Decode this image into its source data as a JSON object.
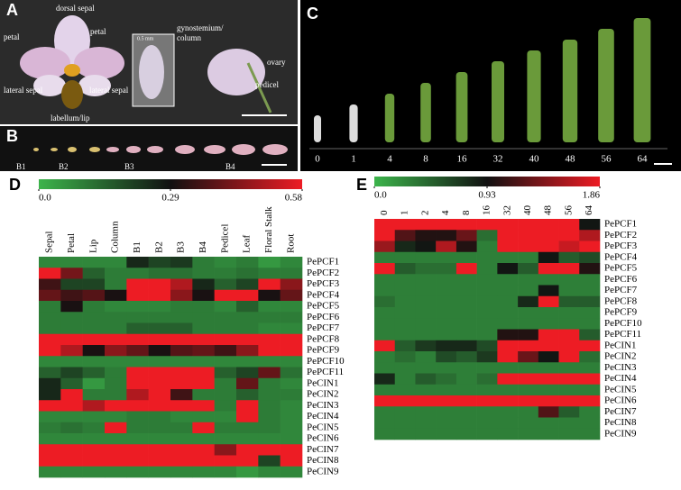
{
  "panel_a": {
    "label": "A",
    "texts": [
      "dorsal sepal",
      "petal",
      "petal",
      "gynostemium/",
      "column",
      "0.5 mm",
      "ovary",
      "lateral sepal",
      "lateral sepal",
      "pedicel",
      "labellum/lip"
    ]
  },
  "panel_b": {
    "label": "B",
    "stages": [
      "B1",
      "B2",
      "B3",
      "B4"
    ]
  },
  "panel_c": {
    "label": "C",
    "stages": [
      "0",
      "1",
      "4",
      "8",
      "16",
      "32",
      "40",
      "48",
      "56",
      "64"
    ]
  },
  "chart_data": [
    {
      "type": "heatmap",
      "label": "D",
      "colors": [
        "#3cb44b",
        "#111111",
        "#ed1c24"
      ],
      "zlim": [
        0,
        0.58
      ],
      "zticks": [
        {
          "value": 0,
          "label": "0.0"
        },
        0.29,
        0.58
      ],
      "x": [
        "Sepal",
        "Petal",
        "Lip",
        "Column",
        "B1",
        "B2",
        "B3",
        "B4",
        "Pedicel",
        "Leaf",
        "Floral Stalk",
        "Root"
      ],
      "y": [
        "PePCF1",
        "PePCF2",
        "PePCF3",
        "PePCF4",
        "PePCF5",
        "PePCF6",
        "PePCF7",
        "PePCF8",
        "PePCF9",
        "PePCF10",
        "PePCF11",
        "PeCIN1",
        "PeCIN2",
        "PeCIN3",
        "PeCIN4",
        "PeCIN5",
        "PeCIN6",
        "PeCIN7",
        "PeCIN8",
        "PeCIN9"
      ],
      "values": [
        [
          0.08,
          0.08,
          0.08,
          0.08,
          0.25,
          0.2,
          0.22,
          0.1,
          0.08,
          0.1,
          0.05,
          0.08
        ],
        [
          0.58,
          0.42,
          0.15,
          0.1,
          0.1,
          0.12,
          0.12,
          0.1,
          0.1,
          0.12,
          0.1,
          0.1
        ],
        [
          0.35,
          0.2,
          0.2,
          0.1,
          0.58,
          0.58,
          0.5,
          0.25,
          0.15,
          0.2,
          0.58,
          0.45
        ],
        [
          0.4,
          0.35,
          0.38,
          0.3,
          0.58,
          0.58,
          0.45,
          0.3,
          0.58,
          0.58,
          0.3,
          0.4
        ],
        [
          0.1,
          0.3,
          0.1,
          0.08,
          0.08,
          0.08,
          0.1,
          0.1,
          0.08,
          0.15,
          0.08,
          0.08
        ],
        [
          0.1,
          0.1,
          0.1,
          0.1,
          0.1,
          0.1,
          0.1,
          0.1,
          0.1,
          0.1,
          0.1,
          0.1
        ],
        [
          0.1,
          0.1,
          0.1,
          0.1,
          0.15,
          0.15,
          0.15,
          0.1,
          0.1,
          0.1,
          0.08,
          0.08
        ],
        [
          0.58,
          0.58,
          0.58,
          0.58,
          0.58,
          0.58,
          0.58,
          0.58,
          0.58,
          0.58,
          0.58,
          0.58
        ],
        [
          0.58,
          0.5,
          0.3,
          0.45,
          0.4,
          0.3,
          0.38,
          0.4,
          0.35,
          0.45,
          0.58,
          0.58
        ],
        [
          0.08,
          0.08,
          0.08,
          0.08,
          0.08,
          0.08,
          0.08,
          0.08,
          0.08,
          0.08,
          0.08,
          0.08
        ],
        [
          0.15,
          0.2,
          0.15,
          0.1,
          0.58,
          0.58,
          0.58,
          0.58,
          0.15,
          0.2,
          0.4,
          0.12
        ],
        [
          0.25,
          0.15,
          0.05,
          0.1,
          0.58,
          0.58,
          0.58,
          0.58,
          0.1,
          0.4,
          0.1,
          0.08
        ],
        [
          0.25,
          0.58,
          0.1,
          0.1,
          0.5,
          0.58,
          0.35,
          0.1,
          0.1,
          0.15,
          0.1,
          0.1
        ],
        [
          0.58,
          0.58,
          0.5,
          0.58,
          0.58,
          0.58,
          0.58,
          0.58,
          0.1,
          0.58,
          0.1,
          0.08
        ],
        [
          0.08,
          0.08,
          0.08,
          0.08,
          0.1,
          0.1,
          0.08,
          0.08,
          0.08,
          0.58,
          0.1,
          0.08
        ],
        [
          0.1,
          0.12,
          0.1,
          0.58,
          0.1,
          0.1,
          0.1,
          0.58,
          0.1,
          0.1,
          0.1,
          0.08
        ],
        [
          0.08,
          0.08,
          0.08,
          0.08,
          0.08,
          0.08,
          0.08,
          0.08,
          0.08,
          0.08,
          0.08,
          0.08
        ],
        [
          0.58,
          0.58,
          0.58,
          0.58,
          0.58,
          0.58,
          0.58,
          0.58,
          0.45,
          0.58,
          0.58,
          0.58
        ],
        [
          0.58,
          0.58,
          0.58,
          0.58,
          0.58,
          0.58,
          0.58,
          0.58,
          0.58,
          0.58,
          0.2,
          0.58
        ],
        [
          0.08,
          0.08,
          0.08,
          0.08,
          0.08,
          0.08,
          0.08,
          0.08,
          0.08,
          0.05,
          0.08,
          0.08
        ]
      ]
    },
    {
      "type": "heatmap",
      "label": "E",
      "colors": [
        "#3cb44b",
        "#111111",
        "#ed1c24"
      ],
      "zlim": [
        0,
        1.86
      ],
      "zticks": [
        {
          "value": 0,
          "label": "0.0"
        },
        0.93,
        1.86
      ],
      "x": [
        "0",
        "1",
        "2",
        "4",
        "8",
        "16",
        "32",
        "40",
        "48",
        "56",
        "64"
      ],
      "y": [
        "PePCF1",
        "PePCF2",
        "PePCF3",
        "PePCF4",
        "PePCF5",
        "PePCF6",
        "PePCF7",
        "PePCF8",
        "PePCF9",
        "PePCF10",
        "PePCF11",
        "PeCIN1",
        "PeCIN2",
        "PeCIN3",
        "PeCIN4",
        "PeCIN5",
        "PeCIN6",
        "PeCIN7",
        "PeCIN8",
        "PeCIN9"
      ],
      "values": [
        [
          1.86,
          1.86,
          1.86,
          1.86,
          1.86,
          1.86,
          1.86,
          1.86,
          1.86,
          1.86,
          0.9
        ],
        [
          1.86,
          1.2,
          1.0,
          1.0,
          1.3,
          0.4,
          1.86,
          1.86,
          1.86,
          1.86,
          1.6
        ],
        [
          1.5,
          0.8,
          0.9,
          1.6,
          1.0,
          0.3,
          1.86,
          1.86,
          1.86,
          1.7,
          1.86
        ],
        [
          0.3,
          0.3,
          0.3,
          0.3,
          0.3,
          0.3,
          0.3,
          0.3,
          0.9,
          0.5,
          0.6
        ],
        [
          1.86,
          0.5,
          0.4,
          0.4,
          1.86,
          0.3,
          0.9,
          0.5,
          1.86,
          1.86,
          1.0
        ],
        [
          0.3,
          0.3,
          0.3,
          0.3,
          0.3,
          0.3,
          0.3,
          0.3,
          0.3,
          0.3,
          0.3
        ],
        [
          0.3,
          0.3,
          0.3,
          0.3,
          0.3,
          0.3,
          0.3,
          0.3,
          0.9,
          0.3,
          0.3
        ],
        [
          0.4,
          0.3,
          0.3,
          0.3,
          0.3,
          0.3,
          0.3,
          0.8,
          1.86,
          0.5,
          0.5
        ],
        [
          0.3,
          0.3,
          0.3,
          0.3,
          0.3,
          0.3,
          0.3,
          0.3,
          0.3,
          0.3,
          0.3
        ],
        [
          0.3,
          0.3,
          0.3,
          0.3,
          0.3,
          0.3,
          0.3,
          0.3,
          0.3,
          0.3,
          0.3
        ],
        [
          0.3,
          0.3,
          0.3,
          0.3,
          0.3,
          0.3,
          1.0,
          1.0,
          1.86,
          1.86,
          0.5
        ],
        [
          1.86,
          0.5,
          0.7,
          0.8,
          0.8,
          0.6,
          1.86,
          1.86,
          1.86,
          1.86,
          1.86
        ],
        [
          0.3,
          0.4,
          0.3,
          0.6,
          0.5,
          0.7,
          1.86,
          1.3,
          0.9,
          1.86,
          0.4
        ],
        [
          0.3,
          0.3,
          0.3,
          0.3,
          0.3,
          0.3,
          0.3,
          0.3,
          0.3,
          0.3,
          0.3
        ],
        [
          0.8,
          0.3,
          0.5,
          0.4,
          0.3,
          0.4,
          1.86,
          1.86,
          1.86,
          1.86,
          1.86
        ],
        [
          0.3,
          0.3,
          0.3,
          0.3,
          0.3,
          0.3,
          0.3,
          0.3,
          0.3,
          0.3,
          0.3
        ],
        [
          1.86,
          1.86,
          1.86,
          1.86,
          1.86,
          1.86,
          1.86,
          1.86,
          1.86,
          1.86,
          1.86
        ],
        [
          0.3,
          0.3,
          0.3,
          0.3,
          0.3,
          0.3,
          0.3,
          0.3,
          1.2,
          0.5,
          0.3
        ],
        [
          0.3,
          0.3,
          0.3,
          0.3,
          0.3,
          0.3,
          0.3,
          0.3,
          0.3,
          0.3,
          0.3
        ],
        [
          0.3,
          0.3,
          0.3,
          0.3,
          0.3,
          0.3,
          0.3,
          0.3,
          0.3,
          0.3,
          0.3
        ]
      ]
    }
  ]
}
